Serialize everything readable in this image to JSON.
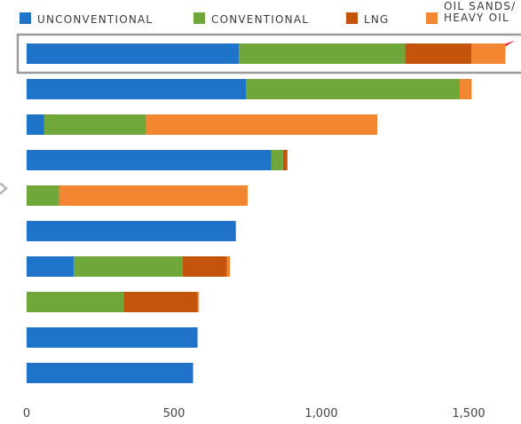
{
  "chart_data": {
    "type": "bar",
    "orientation": "horizontal",
    "stacked": true,
    "title": "",
    "xlabel": "",
    "ylabel": "",
    "xlim": [
      0,
      1800
    ],
    "x_ticks": [
      0,
      500,
      1000,
      1500
    ],
    "x_tick_labels": [
      "0",
      "500",
      "1,000",
      "1,500"
    ],
    "grid": false,
    "legend_position": "top",
    "categories": [
      "",
      "",
      "",
      "",
      "",
      "",
      "",
      "",
      "",
      ""
    ],
    "series": [
      {
        "name": "UNCONVENTIONAL",
        "color": "#1f73c8",
        "values": [
          720,
          745,
          60,
          830,
          0,
          710,
          160,
          0,
          580,
          565
        ]
      },
      {
        "name": "CONVENTIONAL",
        "color": "#6fa73a",
        "values": [
          565,
          725,
          345,
          40,
          110,
          0,
          370,
          330,
          0,
          0
        ]
      },
      {
        "name": "LNG",
        "color": "#c4540c",
        "values": [
          225,
          0,
          0,
          15,
          0,
          0,
          150,
          250,
          0,
          0
        ]
      },
      {
        "name": "OIL SANDS/ HEAVY OIL",
        "name_lines": [
          "OIL SANDS/",
          "HEAVY OIL"
        ],
        "color": "#f38731",
        "values": [
          115,
          40,
          785,
          0,
          640,
          0,
          10,
          5,
          0,
          0
        ]
      }
    ],
    "highlight": {
      "row": 0,
      "box_color": "#9a9a9a",
      "marker_color": "#e8202a",
      "marker": "check-mark"
    },
    "left_marker_color": "#b5b5b5",
    "tick_color": "#444444",
    "legend_text_color": "#3a3a3a"
  }
}
